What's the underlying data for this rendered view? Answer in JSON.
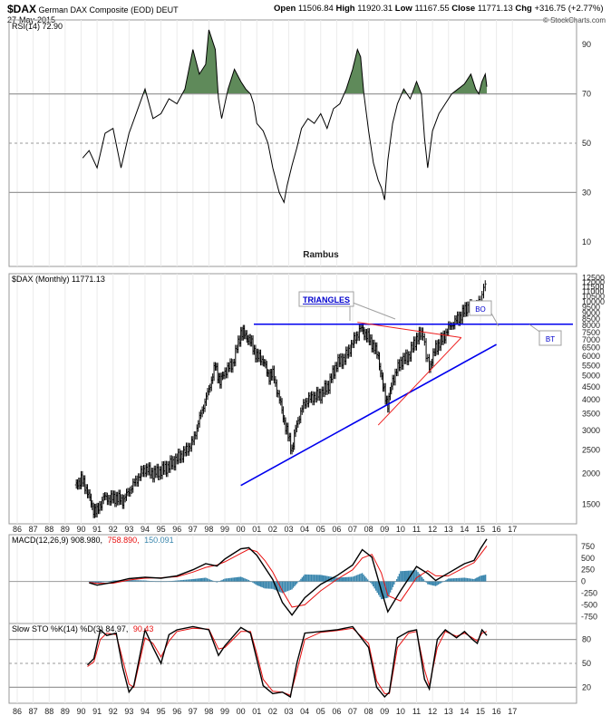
{
  "header": {
    "symbol": "$DAX",
    "name": "German DAX Composite (EOD)",
    "exchange": "DEUT",
    "date": "27-May-2015",
    "open_label": "Open",
    "open": "11506.84",
    "high_label": "High",
    "high": "11920.31",
    "low_label": "Low",
    "low": "11167.55",
    "close_label": "Close",
    "close": "11771.13",
    "chg_label": "Chg",
    "chg": "+316.75 (+2.77%)",
    "copyright": "© StockCharts.com"
  },
  "colors": {
    "price_bar": "#000000",
    "blue_line": "#0000ee",
    "red_line": "#ee2020",
    "rsi_fill": "#5f8a5a",
    "histogram": "#3a86ad",
    "signal": "#e81010",
    "annotation_text": "#0000cc"
  },
  "chart_data": [
    {
      "type": "line",
      "title": "RSI(14)",
      "value": "72.90",
      "label": "RSI(14) 72.90",
      "watermark": "Rambus",
      "ylim": [
        0,
        100
      ],
      "y_ticks": [
        "90",
        "70",
        "50",
        "30",
        "10"
      ],
      "overbought": 70,
      "oversold": 30,
      "x": [
        1990.1,
        1990.5,
        1991,
        1991.5,
        1992,
        1992.5,
        1993,
        1993.5,
        1994,
        1994.5,
        1995,
        1995.5,
        1996,
        1996.5,
        1997,
        1997.4,
        1997.8,
        1998,
        1998.4,
        1998.6,
        1998.8,
        1999.2,
        1999.6,
        2000,
        2000.3,
        2000.6,
        2000.8,
        2001,
        2001.4,
        2001.7,
        2002,
        2002.4,
        2002.7,
        2002.9,
        2003.2,
        2003.5,
        2003.8,
        2004.2,
        2004.6,
        2005,
        2005.4,
        2005.8,
        2006.2,
        2006.6,
        2007,
        2007.3,
        2007.5,
        2007.7,
        2008,
        2008.3,
        2008.6,
        2008.8,
        2009,
        2009.2,
        2009.5,
        2009.8,
        2010.2,
        2010.6,
        2011,
        2011.3,
        2011.5,
        2011.7,
        2012,
        2012.4,
        2012.8,
        2013.2,
        2013.6,
        2014,
        2014.4,
        2014.7,
        2014.9,
        2015.1,
        2015.3,
        2015.4
      ],
      "values": [
        44,
        47,
        40,
        54,
        56,
        40,
        54,
        63,
        72,
        60,
        62,
        68,
        66,
        72,
        88,
        78,
        82,
        96,
        88,
        68,
        60,
        72,
        80,
        75,
        72,
        70,
        66,
        58,
        55,
        50,
        40,
        30,
        26,
        33,
        41,
        48,
        56,
        60,
        58,
        62,
        56,
        64,
        66,
        72,
        80,
        88,
        85,
        70,
        55,
        42,
        35,
        32,
        27,
        43,
        58,
        66,
        72,
        68,
        75,
        70,
        52,
        40,
        55,
        62,
        66,
        70,
        72,
        74,
        78,
        72,
        70,
        75,
        78,
        72.9
      ]
    },
    {
      "type": "line",
      "title": "$DAX (Monthly)",
      "value": "11771.13",
      "label": "$DAX (Monthly) 11771.13",
      "scale": "log",
      "ylim": [
        1250,
        13000
      ],
      "y_ticks": [
        "12500",
        "12000",
        "11500",
        "11000",
        "10500",
        "10000",
        "9500",
        "9000",
        "8500",
        "8000",
        "7500",
        "7000",
        "6500",
        "6000",
        "5500",
        "5000",
        "4500",
        "4000",
        "3500",
        "3000",
        "2500",
        "2000",
        "1500"
      ],
      "x_ticks": [
        "86",
        "87",
        "88",
        "89",
        "90",
        "91",
        "92",
        "93",
        "94",
        "95",
        "96",
        "97",
        "98",
        "99",
        "00",
        "01",
        "02",
        "03",
        "04",
        "05",
        "06",
        "07",
        "08",
        "09",
        "10",
        "11",
        "12",
        "13",
        "14",
        "15",
        "16",
        "17"
      ],
      "x": [
        1989.7,
        1990.0,
        1990.4,
        1990.7,
        1991.0,
        1991.4,
        1991.8,
        1992.2,
        1992.6,
        1993.0,
        1993.5,
        1994.0,
        1994.5,
        1995.0,
        1995.5,
        1996.0,
        1996.5,
        1997.0,
        1997.5,
        1998.0,
        1998.4,
        1998.7,
        1999.0,
        1999.5,
        2000.0,
        2000.3,
        2000.6,
        2001.0,
        2001.4,
        2001.7,
        2002.0,
        2002.5,
        2002.8,
        2003.2,
        2003.5,
        2004.0,
        2004.5,
        2005.0,
        2005.5,
        2006.0,
        2006.5,
        2007.0,
        2007.5,
        2007.8,
        2008.2,
        2008.6,
        2008.9,
        2009.2,
        2009.5,
        2010.0,
        2010.5,
        2011.0,
        2011.4,
        2011.6,
        2011.8,
        2012.2,
        2012.6,
        2013.0,
        2013.4,
        2013.8,
        2014.2,
        2014.6,
        2014.9,
        2015.1,
        2015.3,
        2015.4
      ],
      "values": [
        1800,
        1900,
        1700,
        1450,
        1400,
        1600,
        1580,
        1600,
        1550,
        1700,
        1900,
        2100,
        2000,
        2050,
        2150,
        2300,
        2450,
        2700,
        3500,
        4400,
        5500,
        4700,
        5200,
        5600,
        7500,
        7300,
        6900,
        6000,
        5800,
        5000,
        5100,
        3800,
        3100,
        2500,
        3200,
        3900,
        4100,
        4200,
        4600,
        5600,
        5900,
        6800,
        7800,
        7400,
        6800,
        6000,
        4500,
        3800,
        4800,
        5700,
        6000,
        7100,
        7500,
        6000,
        5400,
        6500,
        7000,
        7800,
        8300,
        8800,
        9600,
        9500,
        9700,
        10800,
        11900,
        11771
      ],
      "annotations": {
        "triangles_label": "TRIANGLES",
        "bo_label": "BO",
        "bt_label": "BT",
        "horizontal_resistance": 8100,
        "support_trendline": [
          [
            2000.0,
            1790
          ],
          [
            2016.0,
            6700
          ]
        ],
        "triangle_upper": [
          [
            2007.3,
            8250
          ],
          [
            2013.8,
            7150
          ]
        ],
        "triangle_lower": [
          [
            2008.6,
            3150
          ],
          [
            2013.8,
            7150
          ]
        ]
      }
    },
    {
      "type": "line",
      "title": "MACD(12,26,9)",
      "label_macd": "MACD(12,26,9) 908.980,",
      "label_signal": "758.890,",
      "label_hist": "150.091",
      "ylim": [
        -900,
        1000
      ],
      "y_ticks": [
        "750",
        "500",
        "250",
        "0",
        "-250",
        "-500",
        "-750"
      ],
      "x": [
        1990.5,
        1991,
        1992,
        1993,
        1994,
        1995,
        1996,
        1997,
        1997.8,
        1998.5,
        1999,
        2000,
        2000.5,
        2001,
        2001.5,
        2002,
        2002.6,
        2003.2,
        2004,
        2005,
        2006,
        2007,
        2007.6,
        2008.2,
        2008.8,
        2009.2,
        2010,
        2011,
        2011.7,
        2012.2,
        2013,
        2014,
        2014.6,
        2015,
        2015.4
      ],
      "macd": [
        -30,
        -80,
        -20,
        60,
        90,
        70,
        120,
        250,
        380,
        330,
        480,
        700,
        720,
        560,
        300,
        40,
        -450,
        -720,
        -350,
        -60,
        120,
        350,
        680,
        520,
        -200,
        -650,
        -200,
        320,
        170,
        20,
        180,
        380,
        450,
        700,
        909
      ],
      "signal": [
        -20,
        -40,
        -40,
        30,
        70,
        80,
        100,
        200,
        300,
        350,
        420,
        600,
        690,
        640,
        450,
        200,
        -200,
        -550,
        -500,
        -200,
        40,
        250,
        500,
        580,
        180,
        -300,
        -420,
        80,
        230,
        120,
        120,
        300,
        400,
        580,
        759
      ],
      "histogram": [
        -10,
        -40,
        20,
        30,
        20,
        -10,
        20,
        50,
        80,
        -20,
        60,
        100,
        30,
        -80,
        -150,
        -160,
        -250,
        -170,
        150,
        140,
        80,
        100,
        180,
        -60,
        -380,
        -350,
        220,
        240,
        -60,
        -100,
        60,
        80,
        50,
        120,
        150
      ]
    },
    {
      "type": "line",
      "title": "Slow STO %K(14) %D(3)",
      "label": "Slow STO %K(14) %D(3) 84.97, 90.43",
      "label_k": "Slow STO %K(14) %D(3) 84.97,",
      "label_d": "90.43",
      "ylim": [
        0,
        100
      ],
      "y_ticks": [
        "80",
        "50",
        "20"
      ],
      "x_ticks": [
        "86",
        "87",
        "88",
        "89",
        "90",
        "91",
        "92",
        "93",
        "94",
        "95",
        "96",
        "97",
        "98",
        "99",
        "00",
        "01",
        "02",
        "03",
        "04",
        "05",
        "06",
        "07",
        "08",
        "09",
        "10",
        "11",
        "12",
        "13",
        "14",
        "15",
        "16",
        "17"
      ],
      "x": [
        1990.4,
        1990.8,
        1991.2,
        1991.6,
        1992.2,
        1992.6,
        1993.0,
        1993.3,
        1994.0,
        1994.5,
        1995.0,
        1995.5,
        1996.0,
        1997.0,
        1998.0,
        1998.6,
        1999.0,
        2000.0,
        2000.6,
        2001.0,
        2001.4,
        2002.0,
        2002.6,
        2003.1,
        2003.5,
        2004.0,
        2005.0,
        2006.0,
        2007.0,
        2008.0,
        2008.5,
        2009.0,
        2009.3,
        2009.8,
        2010.5,
        2011.0,
        2011.5,
        2011.8,
        2012.3,
        2012.8,
        2013.5,
        2014.0,
        2014.5,
        2014.8,
        2015.1,
        2015.4
      ],
      "k": [
        48,
        56,
        92,
        85,
        88,
        45,
        14,
        22,
        92,
        70,
        50,
        86,
        92,
        96,
        92,
        60,
        72,
        95,
        88,
        55,
        22,
        12,
        14,
        8,
        50,
        88,
        90,
        92,
        96,
        70,
        20,
        8,
        14,
        82,
        90,
        92,
        30,
        18,
        80,
        92,
        82,
        90,
        80,
        75,
        92,
        85
      ],
      "d": [
        46,
        52,
        80,
        88,
        86,
        55,
        24,
        20,
        82,
        75,
        58,
        78,
        90,
        94,
        93,
        68,
        70,
        90,
        90,
        62,
        30,
        15,
        14,
        10,
        40,
        80,
        89,
        91,
        94,
        75,
        28,
        12,
        12,
        70,
        88,
        90,
        42,
        22,
        70,
        90,
        84,
        88,
        82,
        78,
        88,
        90
      ]
    }
  ]
}
